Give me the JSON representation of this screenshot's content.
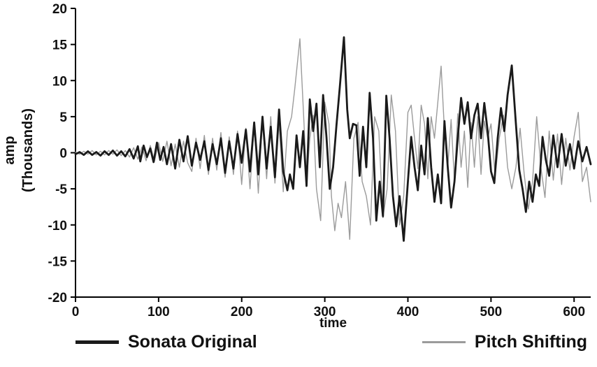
{
  "page": {
    "background": "#ffffff"
  },
  "axis": {
    "y_title_line1": "amp",
    "y_title_line2": "(Thousands)",
    "x_title": "time"
  },
  "chart_data": {
    "type": "line",
    "title": "",
    "xlabel": "time",
    "ylabel": "amp (Thousands)",
    "xlim": [
      0,
      620
    ],
    "ylim": [
      -20,
      20
    ],
    "x_ticks": [
      0,
      100,
      200,
      300,
      400,
      500,
      600
    ],
    "y_ticks": [
      20,
      15,
      10,
      5,
      0,
      -5,
      -10,
      -15,
      -20
    ],
    "grid": false,
    "legend_position": "bottom",
    "series": [
      {
        "name": "Sonata Original",
        "color": "#1a1a1a",
        "width": 2.8,
        "points": [
          [
            0,
            -0.2
          ],
          [
            5,
            0.1
          ],
          [
            10,
            -0.3
          ],
          [
            15,
            0.2
          ],
          [
            20,
            -0.3
          ],
          [
            25,
            0.1
          ],
          [
            30,
            -0.4
          ],
          [
            35,
            0.2
          ],
          [
            40,
            -0.3
          ],
          [
            45,
            0.3
          ],
          [
            50,
            -0.4
          ],
          [
            55,
            0.2
          ],
          [
            60,
            -0.5
          ],
          [
            65,
            0.5
          ],
          [
            70,
            -0.8
          ],
          [
            75,
            0.9
          ],
          [
            78,
            -1.2
          ],
          [
            82,
            1.0
          ],
          [
            86,
            -0.6
          ],
          [
            90,
            0.6
          ],
          [
            94,
            -1.3
          ],
          [
            98,
            1.4
          ],
          [
            102,
            -1.0
          ],
          [
            106,
            0.8
          ],
          [
            110,
            -1.6
          ],
          [
            115,
            1.2
          ],
          [
            120,
            -2.2
          ],
          [
            125,
            1.8
          ],
          [
            130,
            -1.2
          ],
          [
            135,
            2.3
          ],
          [
            140,
            -1.8
          ],
          [
            145,
            1.4
          ],
          [
            150,
            -1.0
          ],
          [
            155,
            1.6
          ],
          [
            160,
            -2.4
          ],
          [
            165,
            1.2
          ],
          [
            170,
            -1.6
          ],
          [
            175,
            2.0
          ],
          [
            180,
            -2.8
          ],
          [
            185,
            1.6
          ],
          [
            190,
            -2.2
          ],
          [
            195,
            2.6
          ],
          [
            200,
            -1.4
          ],
          [
            205,
            3.2
          ],
          [
            210,
            -2.6
          ],
          [
            215,
            4.2
          ],
          [
            220,
            -3.0
          ],
          [
            225,
            5.0
          ],
          [
            230,
            -2.2
          ],
          [
            235,
            3.6
          ],
          [
            240,
            -3.4
          ],
          [
            245,
            6.0
          ],
          [
            250,
            -2.6
          ],
          [
            255,
            -5.2
          ],
          [
            258,
            -3.0
          ],
          [
            262,
            -5.0
          ],
          [
            266,
            2.4
          ],
          [
            270,
            -2.0
          ],
          [
            274,
            3.0
          ],
          [
            278,
            -4.6
          ],
          [
            282,
            7.4
          ],
          [
            286,
            3.0
          ],
          [
            290,
            6.8
          ],
          [
            294,
            -2.0
          ],
          [
            298,
            8.0
          ],
          [
            302,
            2.2
          ],
          [
            306,
            -5.0
          ],
          [
            310,
            -2.0
          ],
          [
            314,
            3.8
          ],
          [
            318,
            9.0
          ],
          [
            323,
            16.0
          ],
          [
            327,
            6.0
          ],
          [
            330,
            2.0
          ],
          [
            334,
            4.0
          ],
          [
            338,
            3.8
          ],
          [
            342,
            -3.2
          ],
          [
            346,
            3.6
          ],
          [
            350,
            -2.0
          ],
          [
            354,
            8.3
          ],
          [
            358,
            2.0
          ],
          [
            362,
            -9.4
          ],
          [
            366,
            -4.0
          ],
          [
            370,
            -8.8
          ],
          [
            374,
            7.9
          ],
          [
            378,
            2.0
          ],
          [
            382,
            -6.0
          ],
          [
            386,
            -10.2
          ],
          [
            390,
            -6.0
          ],
          [
            395,
            -12.2
          ],
          [
            400,
            -4.0
          ],
          [
            404,
            2.2
          ],
          [
            408,
            -2.0
          ],
          [
            412,
            -5.2
          ],
          [
            416,
            1.0
          ],
          [
            420,
            -3.0
          ],
          [
            424,
            4.8
          ],
          [
            428,
            -2.0
          ],
          [
            432,
            -6.8
          ],
          [
            436,
            -3.0
          ],
          [
            440,
            -7.0
          ],
          [
            444,
            4.4
          ],
          [
            448,
            -2.0
          ],
          [
            452,
            -7.6
          ],
          [
            456,
            -4.0
          ],
          [
            460,
            2.0
          ],
          [
            464,
            7.6
          ],
          [
            468,
            4.0
          ],
          [
            472,
            7.0
          ],
          [
            476,
            2.0
          ],
          [
            480,
            5.2
          ],
          [
            484,
            6.8
          ],
          [
            488,
            2.0
          ],
          [
            492,
            6.9
          ],
          [
            496,
            3.0
          ],
          [
            500,
            -2.6
          ],
          [
            504,
            -4.2
          ],
          [
            508,
            2.0
          ],
          [
            512,
            6.2
          ],
          [
            516,
            3.0
          ],
          [
            520,
            8.0
          ],
          [
            525,
            12.1
          ],
          [
            530,
            4.0
          ],
          [
            534,
            -2.4
          ],
          [
            538,
            -5.0
          ],
          [
            542,
            -8.2
          ],
          [
            546,
            -4.0
          ],
          [
            550,
            -6.8
          ],
          [
            554,
            -3.0
          ],
          [
            558,
            -4.6
          ],
          [
            562,
            2.2
          ],
          [
            566,
            -1.0
          ],
          [
            570,
            -3.2
          ],
          [
            575,
            2.4
          ],
          [
            580,
            -2.0
          ],
          [
            585,
            2.6
          ],
          [
            590,
            -1.8
          ],
          [
            595,
            1.2
          ],
          [
            600,
            -2.2
          ],
          [
            605,
            1.6
          ],
          [
            610,
            -1.2
          ],
          [
            615,
            0.8
          ],
          [
            620,
            -1.6
          ]
        ]
      },
      {
        "name": "Pitch Shifting",
        "color": "#9b9b9b",
        "width": 1.4,
        "points": [
          [
            0,
            0.1
          ],
          [
            5,
            -0.2
          ],
          [
            10,
            0.2
          ],
          [
            15,
            -0.2
          ],
          [
            20,
            0.3
          ],
          [
            25,
            -0.3
          ],
          [
            30,
            0.2
          ],
          [
            35,
            -0.3
          ],
          [
            40,
            0.3
          ],
          [
            45,
            -0.2
          ],
          [
            50,
            0.4
          ],
          [
            55,
            -0.4
          ],
          [
            60,
            0.3
          ],
          [
            65,
            -0.6
          ],
          [
            70,
            0.7
          ],
          [
            75,
            -0.9
          ],
          [
            80,
            0.8
          ],
          [
            85,
            -1.1
          ],
          [
            90,
            1.0
          ],
          [
            95,
            -1.2
          ],
          [
            100,
            1.4
          ],
          [
            105,
            -1.2
          ],
          [
            110,
            1.6
          ],
          [
            115,
            -1.8
          ],
          [
            120,
            1.2
          ],
          [
            125,
            -2.0
          ],
          [
            130,
            1.6
          ],
          [
            135,
            -1.4
          ],
          [
            140,
            -2.6
          ],
          [
            145,
            2.0
          ],
          [
            150,
            -2.2
          ],
          [
            155,
            2.4
          ],
          [
            160,
            -3.0
          ],
          [
            165,
            2.0
          ],
          [
            170,
            -2.4
          ],
          [
            175,
            2.8
          ],
          [
            180,
            -3.4
          ],
          [
            185,
            2.2
          ],
          [
            190,
            -3.0
          ],
          [
            195,
            3.0
          ],
          [
            200,
            -4.4
          ],
          [
            205,
            3.4
          ],
          [
            210,
            -5.0
          ],
          [
            215,
            4.0
          ],
          [
            220,
            -5.6
          ],
          [
            225,
            4.6
          ],
          [
            230,
            -3.6
          ],
          [
            235,
            5.0
          ],
          [
            240,
            -4.2
          ],
          [
            245,
            4.2
          ],
          [
            250,
            -5.4
          ],
          [
            255,
            3.0
          ],
          [
            260,
            5.0
          ],
          [
            264,
            9.0
          ],
          [
            270,
            15.8
          ],
          [
            275,
            4.0
          ],
          [
            278,
            -4.2
          ],
          [
            282,
            2.0
          ],
          [
            286,
            5.2
          ],
          [
            290,
            -5.0
          ],
          [
            295,
            -9.4
          ],
          [
            300,
            7.0
          ],
          [
            305,
            4.0
          ],
          [
            308,
            -6.0
          ],
          [
            312,
            -10.8
          ],
          [
            316,
            -7.0
          ],
          [
            320,
            -9.0
          ],
          [
            325,
            -4.0
          ],
          [
            330,
            -12.0
          ],
          [
            335,
            2.0
          ],
          [
            340,
            4.2
          ],
          [
            345,
            -4.0
          ],
          [
            350,
            -6.0
          ],
          [
            355,
            -10.0
          ],
          [
            360,
            5.0
          ],
          [
            365,
            3.0
          ],
          [
            370,
            -9.0
          ],
          [
            375,
            -5.0
          ],
          [
            380,
            8.0
          ],
          [
            385,
            3.0
          ],
          [
            390,
            -10.0
          ],
          [
            395,
            -6.0
          ],
          [
            400,
            5.6
          ],
          [
            404,
            6.6
          ],
          [
            408,
            2.0
          ],
          [
            412,
            -2.2
          ],
          [
            416,
            6.6
          ],
          [
            420,
            4.0
          ],
          [
            424,
            -3.6
          ],
          [
            428,
            5.0
          ],
          [
            432,
            2.0
          ],
          [
            436,
            7.0
          ],
          [
            440,
            12.0
          ],
          [
            444,
            3.0
          ],
          [
            448,
            -2.0
          ],
          [
            452,
            4.6
          ],
          [
            456,
            -4.0
          ],
          [
            460,
            5.4
          ],
          [
            464,
            -2.0
          ],
          [
            468,
            3.0
          ],
          [
            472,
            -4.8
          ],
          [
            476,
            4.2
          ],
          [
            480,
            -2.0
          ],
          [
            484,
            5.0
          ],
          [
            488,
            -3.0
          ],
          [
            492,
            4.4
          ],
          [
            496,
            2.0
          ],
          [
            500,
            4.0
          ],
          [
            505,
            -3.2
          ],
          [
            510,
            2.0
          ],
          [
            515,
            5.2
          ],
          [
            520,
            -2.0
          ],
          [
            525,
            -5.0
          ],
          [
            530,
            -2.0
          ],
          [
            535,
            3.4
          ],
          [
            540,
            -3.0
          ],
          [
            545,
            -7.8
          ],
          [
            550,
            -4.0
          ],
          [
            555,
            5.0
          ],
          [
            560,
            -2.0
          ],
          [
            565,
            -6.2
          ],
          [
            570,
            3.0
          ],
          [
            575,
            -3.8
          ],
          [
            580,
            2.6
          ],
          [
            585,
            -4.4
          ],
          [
            590,
            2.0
          ],
          [
            595,
            -2.4
          ],
          [
            600,
            2.2
          ],
          [
            605,
            5.6
          ],
          [
            610,
            -4.0
          ],
          [
            615,
            -2.0
          ],
          [
            620,
            -6.8
          ]
        ]
      }
    ]
  }
}
